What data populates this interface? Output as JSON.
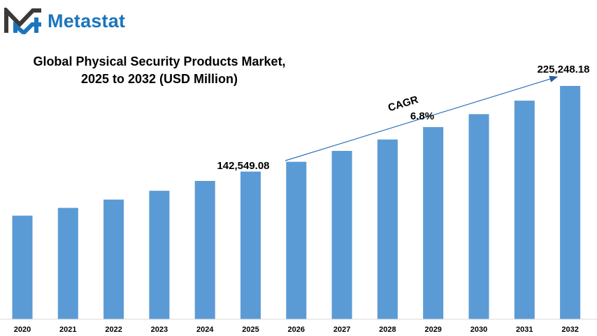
{
  "brand": {
    "name": "Metastat",
    "logo_icon": "metastat-m-logo-icon",
    "accent": "#1b75bc"
  },
  "title": {
    "line1": "Global Physical Security Products Market,",
    "line2": "2025 to 2032 (USD Million)"
  },
  "chart_data": {
    "type": "bar",
    "categories": [
      "2020",
      "2021",
      "2022",
      "2023",
      "2024",
      "2025",
      "2026",
      "2027",
      "2028",
      "2029",
      "2030",
      "2031",
      "2032"
    ],
    "values": [
      100000,
      107500,
      115500,
      124000,
      133500,
      142549.08,
      152000,
      162500,
      173500,
      185500,
      198000,
      211000,
      225248.18
    ],
    "ylim": [
      0,
      230000
    ],
    "bar_color": "#5b9bd5",
    "grid": false,
    "annotations": {
      "start_label": "142,549.08",
      "end_label": "225,248.18",
      "cagr_label": "CAGR",
      "cagr_value": "6.8%"
    }
  }
}
